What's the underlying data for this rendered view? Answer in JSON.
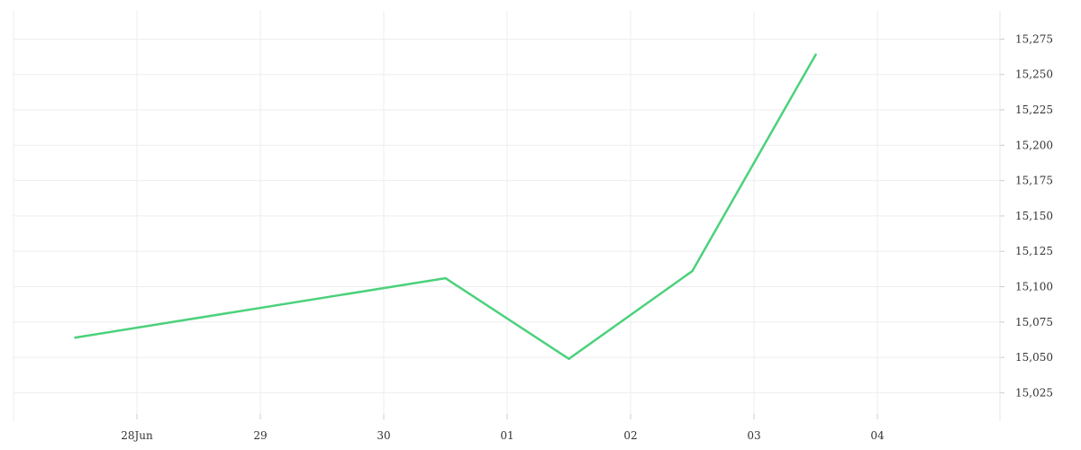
{
  "chart_data": {
    "type": "line",
    "title": "",
    "xlabel": "",
    "ylabel": "",
    "x_ticks": [
      "28Jun",
      "29",
      "30",
      "01",
      "02",
      "03",
      "04"
    ],
    "y_ticks": [
      "15,025",
      "15,050",
      "15,075",
      "15,100",
      "15,125",
      "15,150",
      "15,175",
      "15,200",
      "15,225",
      "15,250",
      "15,275"
    ],
    "y_tick_values": [
      15025,
      15050,
      15075,
      15100,
      15125,
      15150,
      15175,
      15200,
      15225,
      15250,
      15275
    ],
    "ylim": [
      15010,
      15295
    ],
    "grid": true,
    "y_axis_position": "right",
    "series": [
      {
        "color": "#4cd17c",
        "points": [
          {
            "x": "2023-06-27T12:00",
            "y": 15064
          },
          {
            "x": "2023-06-30T12:00",
            "y": 15106
          },
          {
            "x": "2023-07-01T12:00",
            "y": 15049
          },
          {
            "x": "2023-07-02T12:00",
            "y": 15111
          },
          {
            "x": "2023-07-03T12:00",
            "y": 15264
          }
        ]
      }
    ]
  }
}
